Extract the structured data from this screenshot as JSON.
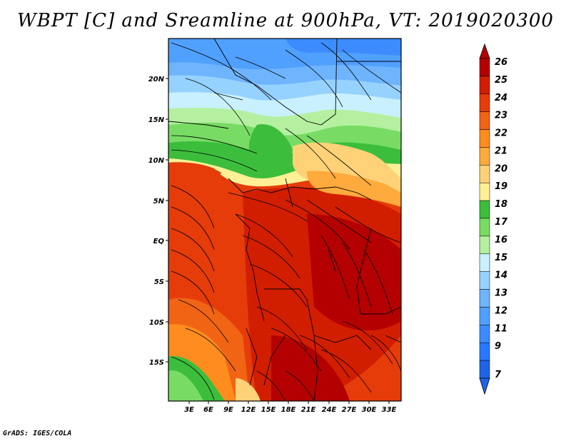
{
  "title": "WBPT [C] and Sreamline at 900hPa, VT: 2019020300",
  "footer": "GrADS: IGES/COLA",
  "map": {
    "lon_range": [
      0,
      34
    ],
    "lat_range": [
      -20,
      25
    ],
    "x_ticks": [
      "3E",
      "6E",
      "9E",
      "12E",
      "15E",
      "18E",
      "21E",
      "24E",
      "27E",
      "30E",
      "33E"
    ],
    "y_ticks": [
      "20N",
      "15N",
      "10N",
      "5N",
      "EQ",
      "5S",
      "10S",
      "15S"
    ],
    "colors": {
      "c7": "#1e64e6",
      "c9": "#2878ff",
      "c11": "#3c8cff",
      "c12": "#50a0ff",
      "c13": "#6eb4ff",
      "c14": "#96d2ff",
      "c15": "#c8f0ff",
      "c16": "#b4f0a0",
      "c17": "#78dc64",
      "c18": "#3cbe3c",
      "c19": "#fff096",
      "c20": "#ffd278",
      "c21": "#ffaa3c",
      "c22": "#ff8c1e",
      "c23": "#f06414",
      "c24": "#e63c0a",
      "c25": "#d21e00",
      "c26": "#b40000"
    }
  },
  "colorbar": {
    "labels": [
      "26",
      "25",
      "24",
      "23",
      "22",
      "21",
      "20",
      "19",
      "18",
      "17",
      "16",
      "15",
      "14",
      "13",
      "12",
      "11",
      "9",
      "7"
    ],
    "colors": [
      "#b40000",
      "#d21e00",
      "#e63c0a",
      "#f06414",
      "#ff8c1e",
      "#ffaa3c",
      "#ffd278",
      "#fff096",
      "#3cbe3c",
      "#78dc64",
      "#b4f0a0",
      "#c8f0ff",
      "#96d2ff",
      "#6eb4ff",
      "#50a0ff",
      "#3c8cff",
      "#2878ff",
      "#1e64e6"
    ]
  }
}
